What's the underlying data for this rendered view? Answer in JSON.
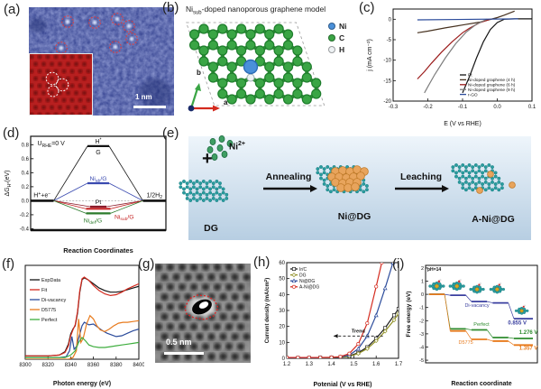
{
  "panels": {
    "a": {
      "label": "(a)",
      "scale_bar": "1 nm"
    },
    "b": {
      "label": "(b)",
      "title": "Ni_{sub}-doped nanoporous graphene model",
      "legend": [
        {
          "label": "Ni",
          "color": "#4a90d9"
        },
        {
          "label": "C",
          "color": "#3aa545"
        },
        {
          "label": "H",
          "color": "#eef2f4"
        }
      ],
      "axis_a": "a",
      "axis_b": "b"
    },
    "c": {
      "label": "(c)"
    },
    "d": {
      "label": "(d)"
    },
    "e": {
      "label": "(e)",
      "ni_ion": "Ni^{2+}",
      "plus": "+",
      "dg": "DG",
      "arrow1": "Annealing",
      "nidg": "Ni@DG",
      "arrow2": "Leaching",
      "anidg": "A-Ni@DG"
    },
    "f": {
      "label": "(f)"
    },
    "g": {
      "label": "(g)",
      "scale_bar": "0.5 nm"
    },
    "h": {
      "label": "(h)"
    },
    "i": {
      "label": "(i)"
    }
  },
  "chart_data": [
    {
      "panel": "c",
      "type": "line",
      "xlabel": "E (V vs RHE)",
      "ylabel": "j (mA cm⁻²)",
      "xlim": [
        -0.3,
        0.1
      ],
      "ylim": [
        -20,
        2.5
      ],
      "xticks": [
        -0.3,
        -0.2,
        -0.1,
        0,
        0.1
      ],
      "xtick_labels": [
        "-0.3",
        "-0.2",
        "-0.1",
        "0.0",
        "0.1"
      ],
      "yticks": [
        0,
        -5,
        -10,
        -15,
        -20
      ],
      "ytick_labels": [
        "0",
        "-5",
        "-10",
        "-15",
        "-20"
      ],
      "legend_position": "bottom-right",
      "series": [
        {
          "name": "Pt",
          "color": "#141414",
          "x": [
            0.1,
            0.05,
            0.02,
            0,
            -0.02,
            -0.04,
            -0.06,
            -0.08,
            -0.1
          ],
          "y": [
            0.1,
            0.1,
            0,
            -0.8,
            -2.5,
            -5.5,
            -9.5,
            -14,
            -18
          ]
        },
        {
          "name": "Ni-doped graphene (4 h)",
          "color": "#46311f",
          "x": [
            0.05,
            0.02,
            0,
            -0.05,
            -0.1,
            -0.15,
            -0.2,
            -0.23
          ],
          "y": [
            2,
            1,
            0.4,
            -0.7,
            -1.4,
            -2.1,
            -2.9,
            -3.3
          ]
        },
        {
          "name": "Ni-doped graphene (6 h)",
          "color": "#9b1b1b",
          "x": [
            -0.02,
            -0.05,
            -0.08,
            -0.1,
            -0.13,
            -0.16,
            -0.19,
            -0.21,
            -0.23
          ],
          "y": [
            0,
            -0.8,
            -2.2,
            -3.3,
            -5.5,
            -8,
            -10.8,
            -12.8,
            -14.6
          ]
        },
        {
          "name": "Ni-doped graphene (9 h)",
          "color": "#7d7d7d",
          "x": [
            -0.03,
            -0.06,
            -0.09,
            -0.12,
            -0.15,
            -0.18,
            -0.2,
            -0.21
          ],
          "y": [
            0,
            -1.2,
            -3.2,
            -6,
            -9.5,
            -13.5,
            -16.5,
            -18
          ]
        },
        {
          "name": "r-GO",
          "color": "#2b4b9b",
          "x": [
            -0.23,
            0.06
          ],
          "y": [
            -0.15,
            0.1
          ]
        }
      ]
    },
    {
      "panel": "d",
      "type": "energy-levels",
      "annotation": "U_{RHE}=0 V",
      "xlabel": "Reaction Coordinates",
      "ylabel": "ΔG_{H*}(eV)",
      "ylim": [
        -0.42,
        0.92
      ],
      "yticks": [
        0.8,
        0.6,
        0.4,
        0.2,
        0,
        -0.2,
        -0.4
      ],
      "ytick_labels": [
        "0.8",
        "0.6",
        "0.4",
        "0.2",
        "0.0",
        "-0.2",
        "-0.4"
      ],
      "left_label": "H^{+}+e^{−}",
      "right_label": "1/2H_{2}",
      "levels": [
        {
          "label_above": "H^{*}",
          "label_below": "G",
          "value": 0.78,
          "color": "#141414",
          "half_width": 0.08
        },
        {
          "label": "Ni_{ab}/G",
          "value": 0.25,
          "color": "#3a4ab0",
          "half_width": 0.08,
          "label_pos": "above"
        },
        {
          "label": "Pt",
          "value": -0.085,
          "color": "#8b1a2a",
          "label_color": "#141414",
          "half_width": 0.06,
          "label_pos": "above"
        },
        {
          "label": "Ni_{sub}/G",
          "value": -0.115,
          "color": "#c42222",
          "half_width": 0.09,
          "label_pos": "right"
        },
        {
          "label": "Ni_{def}/G",
          "value": -0.18,
          "color": "#2a7a2a",
          "half_width": 0.09,
          "label_pos": "below"
        }
      ]
    },
    {
      "panel": "f",
      "type": "line",
      "xlabel": "Photon energy (eV)",
      "ylabel": "",
      "xlim": [
        8300,
        8400
      ],
      "ylim": [
        0,
        1.12
      ],
      "xticks": [
        8300,
        8320,
        8340,
        8360,
        8380,
        8400
      ],
      "xtick_labels": [
        "8300",
        "8320",
        "8340",
        "8360",
        "8380",
        "8400"
      ],
      "yticks": [],
      "ytick_labels": [],
      "legend_position": "left",
      "series": [
        {
          "name": "ExpData",
          "color": "#141414",
          "x": [
            8300,
            8320,
            8330,
            8335,
            8338,
            8340,
            8342,
            8344,
            8346,
            8348,
            8350,
            8352,
            8355,
            8360,
            8365,
            8370,
            8375,
            8380,
            8385,
            8390,
            8395,
            8400
          ],
          "y": [
            0.04,
            0.04,
            0.05,
            0.09,
            0.18,
            0.3,
            0.36,
            0.4,
            0.55,
            0.8,
            0.95,
            0.97,
            0.95,
            0.9,
            0.85,
            0.82,
            0.8,
            0.8,
            0.81,
            0.83,
            0.85,
            0.87
          ]
        },
        {
          "name": "Fit",
          "color": "#d42a1e",
          "x": [
            8300,
            8320,
            8330,
            8335,
            8338,
            8340,
            8342,
            8344,
            8346,
            8348,
            8350,
            8352,
            8356,
            8360,
            8365,
            8370,
            8375,
            8380,
            8385,
            8390,
            8395,
            8400
          ],
          "y": [
            0.04,
            0.04,
            0.05,
            0.08,
            0.16,
            0.28,
            0.35,
            0.41,
            0.57,
            0.82,
            0.96,
            0.98,
            0.94,
            0.88,
            0.82,
            0.78,
            0.76,
            0.77,
            0.8,
            0.84,
            0.87,
            0.9
          ]
        },
        {
          "name": "Di-vacancy",
          "color": "#2b4b9b",
          "x": [
            8300,
            8330,
            8336,
            8339,
            8341,
            8343,
            8345,
            8348,
            8350,
            8352,
            8356,
            8360,
            8364,
            8368,
            8372,
            8376,
            8380,
            8385,
            8390,
            8395,
            8400
          ],
          "y": [
            0.02,
            0.02,
            0.03,
            0.1,
            0.27,
            0.12,
            0.15,
            0.3,
            0.4,
            0.44,
            0.41,
            0.42,
            0.38,
            0.34,
            0.31,
            0.29,
            0.27,
            0.28,
            0.31,
            0.34,
            0.36
          ]
        },
        {
          "name": "D5775",
          "color": "#e87b1e",
          "x": [
            8300,
            8338,
            8342,
            8345,
            8347,
            8349,
            8351,
            8354,
            8357,
            8360,
            8363,
            8366,
            8370,
            8374,
            8378,
            8382,
            8386,
            8390,
            8395,
            8400
          ],
          "y": [
            0,
            0,
            0.02,
            0.1,
            0.48,
            0.2,
            0.25,
            0.42,
            0.52,
            0.48,
            0.4,
            0.35,
            0.33,
            0.36,
            0.4,
            0.43,
            0.44,
            0.44,
            0.45,
            0.46
          ]
        },
        {
          "name": "Perfect",
          "color": "#3fae3f",
          "x": [
            8300,
            8335,
            8340,
            8344,
            8347,
            8350,
            8353,
            8356,
            8360,
            8365,
            8370,
            8375,
            8380,
            8385,
            8390,
            8395,
            8400
          ],
          "y": [
            0.02,
            0.02,
            0.05,
            0.1,
            0.2,
            0.26,
            0.22,
            0.17,
            0.15,
            0.14,
            0.14,
            0.15,
            0.16,
            0.17,
            0.18,
            0.19,
            0.2
          ]
        }
      ]
    },
    {
      "panel": "h",
      "type": "line",
      "xlabel": "Potenial (V vs RHE)",
      "ylabel": "Current density (mA/cm^{2})",
      "xlim": [
        1.2,
        1.7
      ],
      "ylim": [
        0,
        60
      ],
      "xticks": [
        1.2,
        1.3,
        1.4,
        1.5,
        1.6,
        1.7
      ],
      "xtick_labels": [
        "1.2",
        "1.3",
        "1.4",
        "1.5",
        "1.6",
        "1.7"
      ],
      "yticks": [
        0,
        10,
        20,
        30,
        40,
        50,
        60
      ],
      "ytick_labels": [
        "0",
        "10",
        "20",
        "30",
        "40",
        "50",
        "60"
      ],
      "legend_position": "top-left",
      "annotation": {
        "text": "Trend",
        "y": 14,
        "x_from": 1.63,
        "x_to": 1.41
      },
      "series": [
        {
          "name": "Ir/C",
          "color": "#1c1c1c",
          "marker": "square",
          "x": [
            1.2,
            1.25,
            1.3,
            1.35,
            1.4,
            1.44,
            1.48,
            1.52,
            1.56,
            1.6,
            1.64,
            1.68,
            1.7
          ],
          "y": [
            0.3,
            0.3,
            0.3,
            0.4,
            0.5,
            0.8,
            1.5,
            3.5,
            7,
            12.5,
            19,
            27,
            31
          ]
        },
        {
          "name": "DG",
          "color": "#8f8f23",
          "marker": "diamond",
          "x": [
            1.2,
            1.25,
            1.3,
            1.35,
            1.4,
            1.44,
            1.48,
            1.52,
            1.56,
            1.6,
            1.64,
            1.68,
            1.7
          ],
          "y": [
            0.2,
            0.2,
            0.2,
            0.3,
            0.4,
            0.6,
            1.2,
            3,
            6,
            11,
            17,
            24,
            28
          ]
        },
        {
          "name": "Ni@DG",
          "color": "#2b4b9b",
          "marker": "triangle",
          "x": [
            1.2,
            1.25,
            1.3,
            1.35,
            1.4,
            1.44,
            1.48,
            1.52,
            1.56,
            1.6,
            1.64,
            1.675
          ],
          "y": [
            0.3,
            0.3,
            0.3,
            0.4,
            0.5,
            0.8,
            2,
            6,
            14,
            27,
            44,
            60
          ]
        },
        {
          "name": "A-Ni@DG",
          "color": "#d42a1e",
          "marker": "circle",
          "x": [
            1.2,
            1.25,
            1.3,
            1.35,
            1.4,
            1.44,
            1.48,
            1.52,
            1.56,
            1.6,
            1.625
          ],
          "y": [
            0.5,
            0.5,
            0.5,
            0.5,
            0.6,
            1,
            3,
            9,
            22,
            45,
            60
          ]
        }
      ]
    },
    {
      "panel": "i",
      "type": "steps",
      "annotation": "pH=14",
      "xlabel": "Reaction coordinate",
      "ylabel": "Free energy (eV)",
      "ylim": [
        -5.2,
        2.2
      ],
      "yticks": [
        2,
        1,
        0,
        -1,
        -2,
        -3,
        -4,
        -5
      ],
      "ytick_labels": [
        "2",
        "1",
        "0",
        "-1",
        "-2",
        "-3",
        "-4",
        "-5"
      ],
      "series": [
        {
          "name": "Di-vacancy",
          "color": "#3a3f9f",
          "steps": [
            0,
            -0.07,
            -0.55,
            -0.65,
            -1.85
          ],
          "potential": "0.855 V",
          "name_x": 0.46,
          "name_y": -0.95,
          "pot_x": 0.82,
          "pot_y": -2.3
        },
        {
          "name": "Perfect",
          "color": "#2e8b2e",
          "steps": [
            0,
            -2.62,
            -2.7,
            -3.28,
            -3.35
          ],
          "potential": "1.276 V",
          "name_x": 0.5,
          "name_y": -2.4,
          "pot_x": 0.92,
          "pot_y": -3.0
        },
        {
          "name": "D5775",
          "color": "#e87b1e",
          "steps": [
            0,
            -2.78,
            -3.42,
            -3.55,
            -3.85
          ],
          "potential": "1.357 V",
          "name_x": 0.36,
          "name_y": -3.75,
          "pot_x": 0.92,
          "pot_y": -4.2
        }
      ]
    }
  ]
}
